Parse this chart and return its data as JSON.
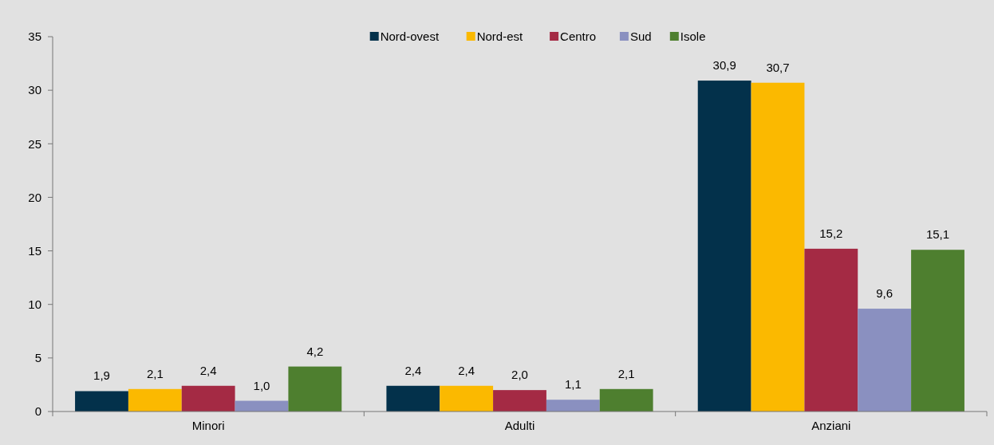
{
  "chart_data": {
    "type": "bar",
    "categories": [
      "Minori",
      "Adulti",
      "Anziani"
    ],
    "series": [
      {
        "name": "Nord-ovest",
        "color": "#03314b",
        "values": [
          1.9,
          2.4,
          30.9
        ],
        "value_labels": [
          "1,9",
          "2,4",
          "30,9"
        ]
      },
      {
        "name": "Nord-est",
        "color": "#fbb900",
        "values": [
          2.1,
          2.4,
          30.7
        ],
        "value_labels": [
          "2,1",
          "2,4",
          "30,7"
        ]
      },
      {
        "name": "Centro",
        "color": "#a42a44",
        "values": [
          2.4,
          2.0,
          15.2
        ],
        "value_labels": [
          "2,4",
          "2,0",
          "15,2"
        ]
      },
      {
        "name": "Sud",
        "color": "#8a90c0",
        "values": [
          1.0,
          1.1,
          9.6
        ],
        "value_labels": [
          "1,0",
          "1,1",
          "9,6"
        ]
      },
      {
        "name": "Isole",
        "color": "#4e7f2f",
        "values": [
          4.2,
          2.1,
          15.1
        ],
        "value_labels": [
          "4,2",
          "2,1",
          "15,1"
        ]
      }
    ],
    "ylim": [
      0,
      35
    ],
    "yticks": [
      0,
      5,
      10,
      15,
      20,
      25,
      30,
      35
    ],
    "grid": false,
    "legend": "top"
  }
}
